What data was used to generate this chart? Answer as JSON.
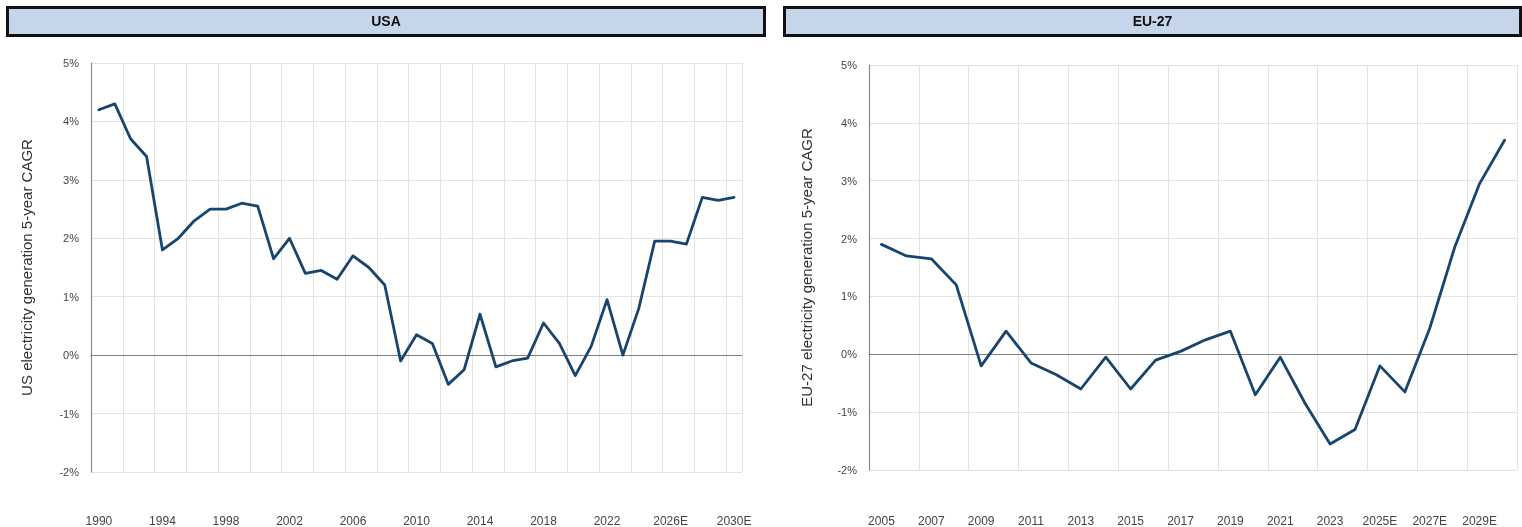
{
  "chart_data": [
    {
      "type": "line",
      "title": "USA",
      "ylabel": "US electricity generation 5-year CAGR",
      "color": "#17456e",
      "grid": true,
      "categories": [
        "1990",
        null,
        null,
        null,
        "1994",
        null,
        null,
        null,
        "1998",
        null,
        null,
        null,
        "2002",
        null,
        null,
        null,
        "2006",
        null,
        null,
        null,
        "2010",
        null,
        null,
        null,
        "2014",
        null,
        null,
        null,
        "2018",
        null,
        null,
        null,
        "2022",
        null,
        null,
        null,
        "2026E",
        null,
        null,
        null,
        "2030E"
      ],
      "values": [
        4.2,
        4.3,
        3.7,
        3.4,
        1.8,
        2.0,
        2.3,
        2.5,
        2.5,
        2.6,
        2.55,
        1.65,
        2.0,
        1.4,
        1.45,
        1.3,
        1.7,
        1.5,
        1.2,
        -0.1,
        0.35,
        0.2,
        -0.5,
        -0.25,
        0.7,
        -0.2,
        -0.1,
        -0.05,
        0.55,
        0.2,
        -0.35,
        0.15,
        0.95,
        0.0,
        0.8,
        1.95,
        1.95,
        1.9,
        2.7,
        2.65,
        2.7
      ],
      "ylim": [
        -2,
        5
      ],
      "yticks": [
        {
          "value": -2,
          "label": "-2%"
        },
        {
          "value": -1,
          "label": "-1%"
        },
        {
          "value": 0,
          "label": "0%"
        },
        {
          "value": 1,
          "label": "1%"
        },
        {
          "value": 2,
          "label": "2%"
        },
        {
          "value": 3,
          "label": "3%"
        },
        {
          "value": 4,
          "label": "4%"
        },
        {
          "value": 5,
          "label": "5%"
        }
      ]
    },
    {
      "type": "line",
      "title": "EU-27",
      "ylabel": "EU-27 electricity generation 5-year CAGR",
      "color": "#17456e",
      "grid": true,
      "categories": [
        "2005",
        null,
        "2007",
        null,
        "2009",
        null,
        "2011",
        null,
        "2013",
        null,
        "2015",
        null,
        "2017",
        null,
        "2019",
        null,
        "2021",
        null,
        "2023",
        null,
        "2025E",
        null,
        "2027E",
        null,
        "2029E",
        null
      ],
      "values": [
        1.9,
        1.7,
        1.65,
        1.2,
        -0.2,
        0.4,
        -0.15,
        -0.35,
        -0.6,
        -0.05,
        -0.6,
        -0.1,
        0.05,
        0.25,
        0.4,
        -0.7,
        -0.05,
        -0.85,
        -1.55,
        -1.3,
        -0.2,
        -0.65,
        0.45,
        1.85,
        2.95,
        3.7
      ],
      "ylim": [
        -2,
        5
      ],
      "yticks": [
        {
          "value": -2,
          "label": "-2%"
        },
        {
          "value": -1,
          "label": "-1%"
        },
        {
          "value": 0,
          "label": "0%"
        },
        {
          "value": 1,
          "label": "1%"
        },
        {
          "value": 2,
          "label": "2%"
        },
        {
          "value": 3,
          "label": "3%"
        },
        {
          "value": 4,
          "label": "4%"
        },
        {
          "value": 5,
          "label": "5%"
        }
      ]
    }
  ]
}
